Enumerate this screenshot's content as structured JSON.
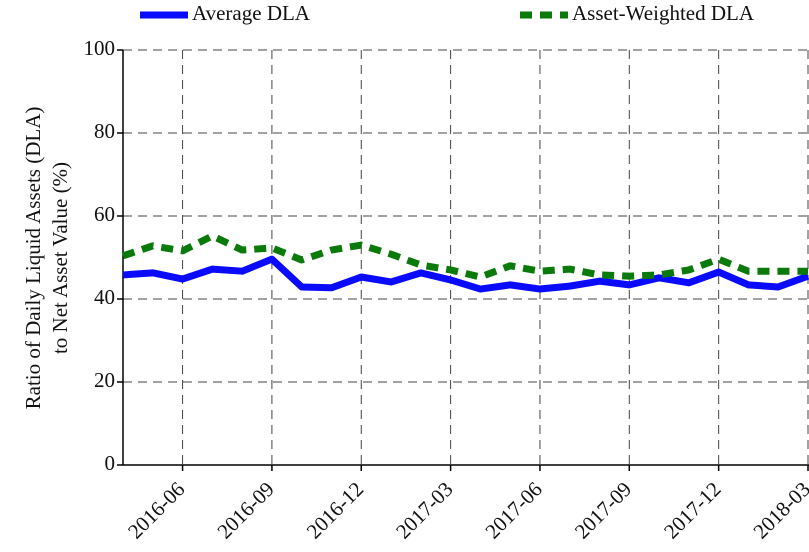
{
  "chart_data": {
    "type": "line",
    "ylabel": [
      "Ratio of Daily Liquid Assets (DLA)",
      "to Net Asset Value (%)"
    ],
    "x": [
      "2016-04",
      "2016-05",
      "2016-06",
      "2016-07",
      "2016-08",
      "2016-09",
      "2016-10",
      "2016-11",
      "2016-12",
      "2017-01",
      "2017-02",
      "2017-03",
      "2017-04",
      "2017-05",
      "2017-06",
      "2017-07",
      "2017-08",
      "2017-09",
      "2017-10",
      "2017-11",
      "2017-12",
      "2018-01",
      "2018-02",
      "2018-03"
    ],
    "series": [
      {
        "name": "Average DLA",
        "color": "#0a0aff",
        "dash": false,
        "values": [
          45.8,
          46.3,
          44.8,
          47.2,
          46.7,
          49.6,
          42.9,
          42.7,
          45.3,
          44.1,
          46.3,
          44.6,
          42.4,
          43.4,
          42.4,
          43.1,
          44.3,
          43.4,
          45.1,
          43.9,
          46.5,
          43.4,
          42.9,
          45.5
        ]
      },
      {
        "name": "Asset-Weighted DLA",
        "color": "#0a7a0a",
        "dash": true,
        "values": [
          50.4,
          52.8,
          51.6,
          55.2,
          51.8,
          52.3,
          49.4,
          51.8,
          53.0,
          50.8,
          48.2,
          47.0,
          45.3,
          48.0,
          46.7,
          47.2,
          45.8,
          45.5,
          45.8,
          47.0,
          49.6,
          46.7,
          46.7,
          46.7
        ]
      }
    ],
    "xlim": [
      "2016-04",
      "2018-03"
    ],
    "xticks": [
      "2016-06",
      "2016-09",
      "2016-12",
      "2017-03",
      "2017-06",
      "2017-09",
      "2017-12",
      "2018-03"
    ],
    "ylim": [
      0,
      100
    ],
    "yticks": [
      0,
      20,
      40,
      60,
      80,
      100
    ],
    "grid": true
  }
}
